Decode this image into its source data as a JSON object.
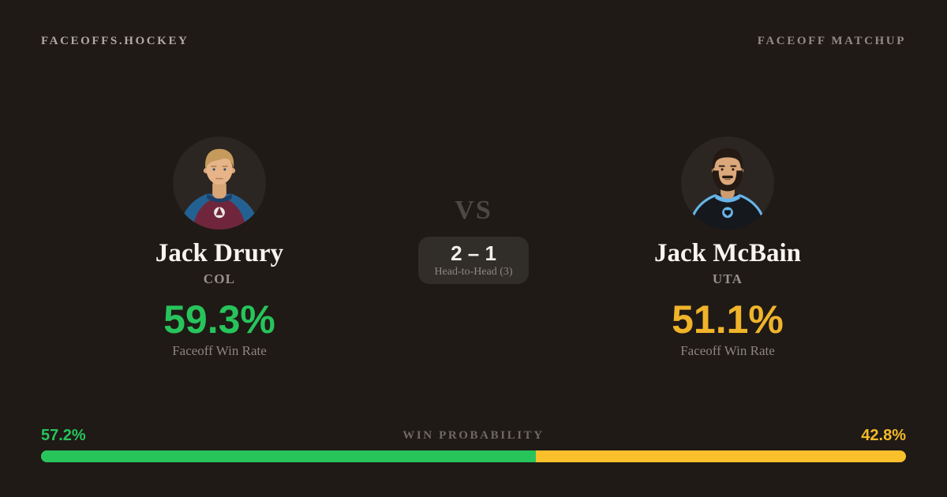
{
  "header": {
    "brand": "FACEOFFS.HOCKEY",
    "page_label": "FACEOFF MATCHUP"
  },
  "players": {
    "left": {
      "name": "Jack Drury",
      "team": "COL",
      "win_rate": "59.3%",
      "win_rate_label": "Faceoff Win Rate",
      "accent_color": "#27c45b",
      "avatar": "blond player in maroon-and-blue Colorado jersey"
    },
    "right": {
      "name": "Jack McBain",
      "team": "UTA",
      "win_rate": "51.1%",
      "win_rate_label": "Faceoff Win Rate",
      "accent_color": "#f0b42b",
      "avatar": "dark-haired bearded player in black Utah jersey"
    }
  },
  "matchup": {
    "vs_label": "VS",
    "head_to_head_score": "2 – 1",
    "head_to_head_label": "Head-to-Head (3)"
  },
  "win_probability": {
    "label": "WIN PROBABILITY",
    "left_pct": "57.2%",
    "right_pct": "42.8%",
    "left_value": 57.2,
    "right_value": 42.8
  },
  "colors": {
    "background": "#1f1a16",
    "card_box": "#312d29",
    "green": "#27c45b",
    "yellow": "#f0b42b",
    "bar_yellow": "#f9c02c",
    "text_primary": "#f5f2ee",
    "text_muted": "#8d857e"
  }
}
